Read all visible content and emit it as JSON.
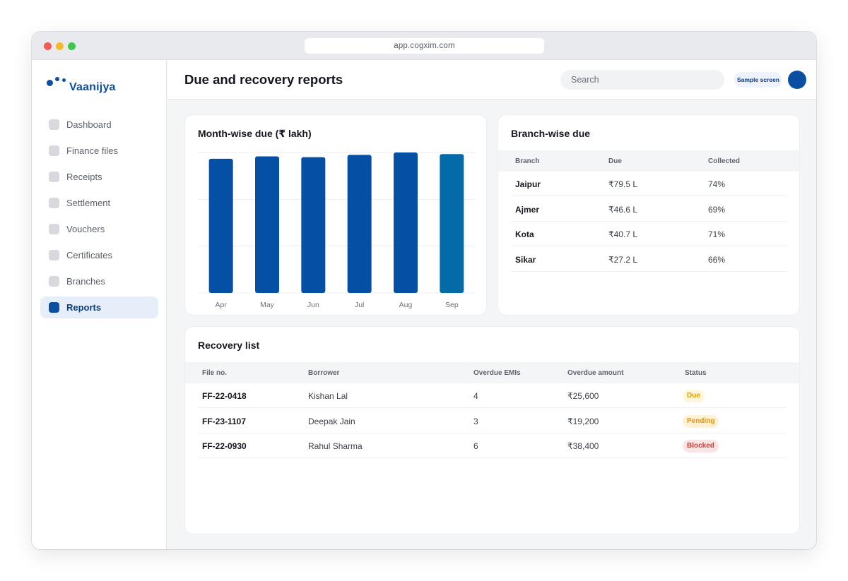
{
  "browser": {
    "url": "app.cogxim.com"
  },
  "app": {
    "name": "Vaanijya"
  },
  "sidebar": {
    "items": [
      {
        "label": "Dashboard",
        "active": false
      },
      {
        "label": "Finance files",
        "active": false
      },
      {
        "label": "Receipts",
        "active": false
      },
      {
        "label": "Settlement",
        "active": false
      },
      {
        "label": "Vouchers",
        "active": false
      },
      {
        "label": "Certificates",
        "active": false
      },
      {
        "label": "Branches",
        "active": false
      },
      {
        "label": "Reports",
        "active": true
      }
    ]
  },
  "header": {
    "title": "Due and recovery reports",
    "search_placeholder": "Search",
    "badge": "Sample screen"
  },
  "colors": {
    "primary": "#0B4EA2",
    "bar": "#0550A4",
    "bar_highlight": "#046AA8"
  },
  "chart_data": {
    "type": "bar",
    "title": "Month-wise due (₹ lakh)",
    "categories": [
      "Apr",
      "May",
      "Jun",
      "Jul",
      "Aug",
      "Sep"
    ],
    "values": [
      86,
      87.5,
      87,
      88.5,
      90,
      89
    ],
    "ylim": [
      0,
      90
    ],
    "grid": true,
    "highlight_index": 5
  },
  "branch_table": {
    "title": "Branch-wise due",
    "columns": [
      "Branch",
      "Due",
      "Collected"
    ],
    "rows": [
      {
        "branch": "Jaipur",
        "due": "₹79.5 L",
        "collected": "74%"
      },
      {
        "branch": "Ajmer",
        "due": "₹46.6 L",
        "collected": "69%"
      },
      {
        "branch": "Kota",
        "due": "₹40.7 L",
        "collected": "71%"
      },
      {
        "branch": "Sikar",
        "due": "₹27.2 L",
        "collected": "66%"
      }
    ]
  },
  "recovery": {
    "title": "Recovery list",
    "columns": [
      "File no.",
      "Borrower",
      "Overdue EMIs",
      "Overdue amount",
      "Status"
    ],
    "rows": [
      {
        "file_no": "FF-22-0418",
        "borrower": "Kishan Lal",
        "overdue_emis": "4",
        "overdue_amount": "₹25,600",
        "status": "Due",
        "status_bg": "#FFF6DD",
        "status_fg": "#D9A100"
      },
      {
        "file_no": "FF-23-1107",
        "borrower": "Deepak Jain",
        "overdue_emis": "3",
        "overdue_amount": "₹19,200",
        "status": "Pending",
        "status_bg": "#FFF1D6",
        "status_fg": "#E0951B"
      },
      {
        "file_no": "FF-22-0930",
        "borrower": "Rahul Sharma",
        "overdue_emis": "6",
        "overdue_amount": "₹38,400",
        "status": "Blocked",
        "status_bg": "#FDE4E4",
        "status_fg": "#D23A3A"
      }
    ]
  }
}
